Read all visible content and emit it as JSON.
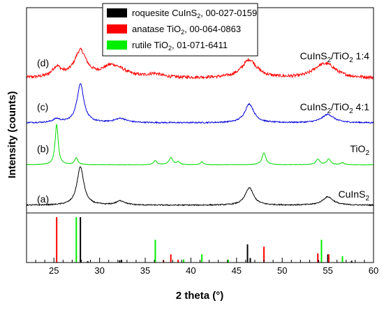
{
  "chart_data": {
    "type": "line",
    "xlabel": "2 theta (°)",
    "ylabel": "Intensity (counts)",
    "xlim": [
      22,
      60
    ],
    "x_ticks": [
      25,
      30,
      35,
      40,
      45,
      50,
      55,
      60
    ],
    "x_tick_labels": [
      "25",
      "30",
      "35",
      "40",
      "45",
      "50",
      "55",
      "60"
    ],
    "grid": false,
    "legend_position": "top-center",
    "legend": [
      {
        "text": "roquesite CuInS",
        "sub": "2",
        "suffix": ", 00-027-0159",
        "color": "#000000"
      },
      {
        "text": "anatase TiO",
        "sub": "2",
        "suffix": ", 00-064-0863",
        "color": "#ff0000"
      },
      {
        "text": "rutile TiO",
        "sub": "2",
        "suffix": ", 01-071-6411",
        "color": "#00ee00"
      }
    ],
    "series": [
      {
        "letter": "(d)",
        "label_main": "CuInS",
        "label_sub": "2",
        "label_tail": "/TiO",
        "label_sub2": "2",
        "label_end": " 1:4",
        "color": "#ff0000",
        "noise": 2.2,
        "baseline": 6,
        "peaks": [
          [
            25.3,
            14,
            0.6
          ],
          [
            27.9,
            38,
            0.8
          ],
          [
            31.2,
            14,
            1.2
          ],
          [
            32.3,
            6,
            1.2
          ],
          [
            36.0,
            5,
            1.0
          ],
          [
            46.4,
            26,
            1.0
          ],
          [
            54.0,
            8,
            1.0
          ],
          [
            55.0,
            16,
            1.2
          ]
        ]
      },
      {
        "letter": "(c)",
        "label_main": "CuInS",
        "label_sub": "2",
        "label_tail": "/TiO",
        "label_sub2": "2",
        "label_end": " 4:1",
        "color": "#0000dd",
        "noise": 0.9,
        "baseline": 2,
        "peaks": [
          [
            25.3,
            5,
            0.5
          ],
          [
            27.9,
            56,
            0.45
          ],
          [
            32.3,
            6,
            0.8
          ],
          [
            46.4,
            27,
            0.6
          ],
          [
            55.0,
            12,
            0.8
          ]
        ]
      },
      {
        "letter": "(b)",
        "label_main": "TiO",
        "label_sub": "2",
        "label_tail": "",
        "label_sub2": "",
        "label_end": "",
        "color": "#00dd00",
        "noise": 0.35,
        "baseline": 0,
        "peaks": [
          [
            25.3,
            58,
            0.2
          ],
          [
            27.45,
            10,
            0.2
          ],
          [
            36.1,
            6,
            0.2
          ],
          [
            37.8,
            10,
            0.25
          ],
          [
            38.6,
            4,
            0.2
          ],
          [
            41.2,
            4,
            0.2
          ],
          [
            48.0,
            17,
            0.25
          ],
          [
            53.9,
            8,
            0.25
          ],
          [
            55.1,
            8,
            0.25
          ],
          [
            56.6,
            3,
            0.2
          ]
        ]
      },
      {
        "letter": "(a)",
        "label_main": "CuInS",
        "label_sub": "2",
        "label_tail": "",
        "label_sub2": "",
        "label_end": "",
        "color": "#000000",
        "noise": 0.8,
        "baseline": 1,
        "peaks": [
          [
            27.9,
            55,
            0.45
          ],
          [
            32.3,
            6,
            0.6
          ],
          [
            46.4,
            25,
            0.55
          ],
          [
            55.0,
            12,
            0.7
          ]
        ]
      }
    ],
    "reference_sticks": [
      {
        "name": "roquesite",
        "color": "#000000",
        "x": [
          27.9,
          28.7,
          32.2,
          32.4,
          46.2,
          46.5,
          55.0,
          57.6
        ],
        "y": [
          100,
          3,
          5,
          6,
          40,
          10,
          18,
          4
        ]
      },
      {
        "name": "anatase",
        "color": "#ff0000",
        "x": [
          25.3,
          37.0,
          37.8,
          38.6,
          48.0,
          53.9,
          55.1
        ],
        "y": [
          100,
          5,
          18,
          6,
          35,
          20,
          18
        ]
      },
      {
        "name": "rutile",
        "color": "#00ee00",
        "x": [
          27.45,
          36.1,
          39.2,
          41.2,
          44.1,
          54.3,
          56.6
        ],
        "y": [
          100,
          50,
          7,
          18,
          6,
          50,
          14
        ]
      }
    ]
  }
}
